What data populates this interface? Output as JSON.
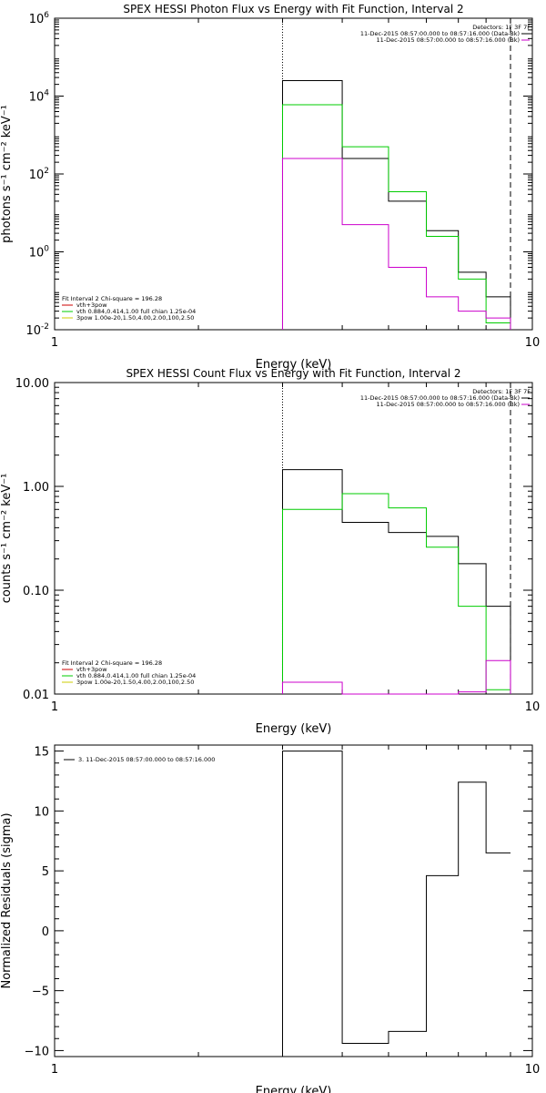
{
  "chart_data": [
    {
      "type": "line",
      "title": "SPEX HESSI Photon Flux vs Energy with Fit Function, Interval 2",
      "xlabel": "Energy (keV)",
      "ylabel": "photons s⁻¹ cm⁻² keV⁻¹",
      "xscale": "log",
      "yscale": "log",
      "xlim": [
        1,
        10
      ],
      "ylim": [
        0.01,
        1000000
      ],
      "x_ticks": [
        1,
        10
      ],
      "y_ticks": [
        {
          "value": 0.01,
          "base": "10",
          "exp": "-2"
        },
        {
          "value": 1,
          "base": "10",
          "exp": "0"
        },
        {
          "value": 100,
          "base": "10",
          "exp": "2"
        },
        {
          "value": 10000,
          "base": "10",
          "exp": "4"
        },
        {
          "value": 1000000,
          "base": "10",
          "exp": "6"
        }
      ],
      "vlines": [
        {
          "x": 3.0,
          "style": "dotted"
        },
        {
          "x": 9.0,
          "style": "dashed"
        }
      ],
      "detectors_text": "Detectors: 1F 3F 7F",
      "legend_top_right": [
        {
          "text": "11-Dec-2015 08:57:00.000 to 08:57:16.000 (Data-Bk)",
          "color": "#000000"
        },
        {
          "text": "11-Dec-2015 08:57:00.000 to 08:57:16.000 (Bk)",
          "color": "#cc00cc"
        }
      ],
      "fit_text": "Fit Interval 2   Chi-square = 196.28",
      "legend_bottom_left": [
        {
          "text": "vth+3pow",
          "color": "#cc0000"
        },
        {
          "text": "vth 0.884,0.414,1.00  full chian 1.25e-04",
          "color": "#00cc00"
        },
        {
          "text": "3pow 1.00e-20,1.50,4.00,2.00,100,2.50",
          "color": "#cccc00"
        }
      ],
      "bin_edges": [
        3.0,
        3.5,
        4.0,
        4.5,
        5.0,
        5.5,
        6.0,
        6.5,
        7.0,
        7.5,
        8.0,
        8.5,
        9.0
      ],
      "series": [
        {
          "color": "#000000",
          "values": [
            25000,
            25000,
            250,
            250,
            20,
            20,
            3.5,
            3.5,
            0.3,
            0.3,
            0.07,
            0.07
          ]
        },
        {
          "color": "#00cc00",
          "values": [
            6000,
            6000,
            500,
            500,
            35,
            35,
            2.5,
            2.5,
            0.2,
            0.2,
            0.015,
            0.015
          ]
        },
        {
          "color": "#cc00cc",
          "values": [
            250,
            250,
            5,
            5,
            0.4,
            0.4,
            0.07,
            0.07,
            0.03,
            0.03,
            0.02,
            0.02
          ]
        }
      ]
    },
    {
      "type": "line",
      "title": "SPEX HESSI Count Flux vs Energy with Fit Function, Interval 2",
      "xlabel": "Energy (keV)",
      "ylabel": "counts s⁻¹ cm⁻² keV⁻¹",
      "xscale": "log",
      "yscale": "log",
      "xlim": [
        1,
        10
      ],
      "ylim": [
        0.01,
        10
      ],
      "x_ticks": [
        1,
        10
      ],
      "y_ticks": [
        {
          "value": 0.01,
          "label": "0.01"
        },
        {
          "value": 0.1,
          "label": "0.10"
        },
        {
          "value": 1,
          "label": "1.00"
        },
        {
          "value": 10,
          "label": "10.00"
        }
      ],
      "vlines": [
        {
          "x": 3.0,
          "style": "dotted"
        },
        {
          "x": 9.0,
          "style": "dashed"
        }
      ],
      "detectors_text": "Detectors: 1F 3F 7F",
      "legend_top_right": [
        {
          "text": "11-Dec-2015 08:57:00.000 to 08:57:16.000 (Data-Bk)",
          "color": "#000000"
        },
        {
          "text": "11-Dec-2015 08:57:00.000 to 08:57:16.000 (Bk)",
          "color": "#cc00cc"
        }
      ],
      "fit_text": "Fit Interval 2   Chi-square = 196.28",
      "legend_bottom_left": [
        {
          "text": "vth+3pow",
          "color": "#cc0000"
        },
        {
          "text": "vth 0.884,0.414,1.00  full chian 1.25e-04",
          "color": "#00cc00"
        },
        {
          "text": "3pow 1.00e-20,1.50,4.00,2.00,100,2.50",
          "color": "#cccc00"
        }
      ],
      "bin_edges": [
        3.0,
        3.5,
        4.0,
        4.5,
        5.0,
        5.5,
        6.0,
        6.5,
        7.0,
        7.5,
        8.0,
        8.5,
        9.0
      ],
      "series": [
        {
          "color": "#000000",
          "values": [
            1.45,
            1.45,
            0.45,
            0.45,
            0.36,
            0.36,
            0.33,
            0.33,
            0.18,
            0.18,
            0.07,
            0.07
          ]
        },
        {
          "color": "#00cc00",
          "values": [
            0.6,
            0.6,
            0.85,
            0.85,
            0.62,
            0.62,
            0.26,
            0.26,
            0.07,
            0.07,
            0.011,
            0.011
          ]
        },
        {
          "color": "#cc00cc",
          "values": [
            0.013,
            0.013,
            0.01,
            0.01,
            0.0098,
            0.0098,
            0.0095,
            0.0095,
            0.0105,
            0.0105,
            0.021,
            0.021
          ]
        }
      ]
    },
    {
      "type": "line",
      "title": "",
      "xlabel": "Energy (keV)",
      "ylabel": "Normalized Residuals (sigma)",
      "xscale": "log",
      "yscale": "linear",
      "xlim": [
        1,
        10
      ],
      "ylim": [
        -10.5,
        15.5
      ],
      "x_ticks": [
        1,
        10
      ],
      "y_ticks": [
        {
          "value": -10,
          "label": "−10"
        },
        {
          "value": -5,
          "label": "−5"
        },
        {
          "value": 0,
          "label": "0"
        },
        {
          "value": 5,
          "label": "5"
        },
        {
          "value": 10,
          "label": "10"
        },
        {
          "value": 15,
          "label": "15"
        }
      ],
      "legend_text": "3. 11-Dec-2015 08:57:00.000 to 08:57:16.000",
      "bin_edges": [
        3.0,
        3.5,
        4.0,
        4.5,
        5.0,
        5.5,
        6.0,
        6.5,
        7.0,
        7.5,
        8.0,
        8.5,
        9.0
      ],
      "series": [
        {
          "color": "#000000",
          "values": [
            15,
            15,
            -9.4,
            -9.4,
            -8.4,
            -8.4,
            4.6,
            4.6,
            12.4,
            12.4,
            6.5,
            6.5
          ]
        }
      ]
    }
  ]
}
